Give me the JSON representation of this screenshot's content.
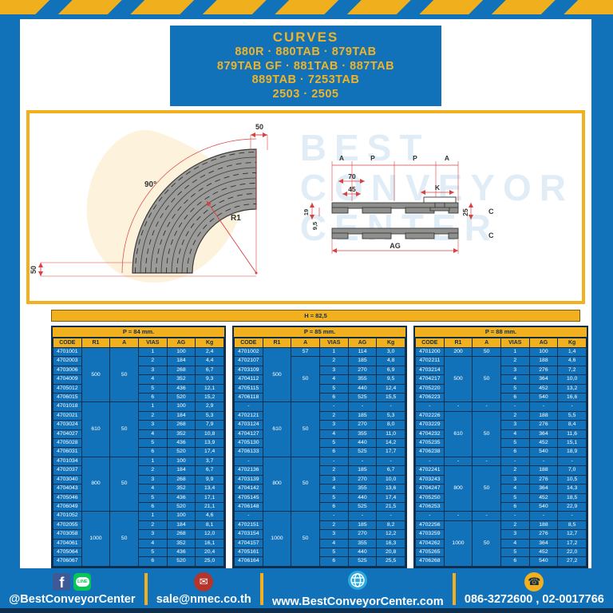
{
  "header": {
    "title": "CURVES",
    "lines": [
      "880R · 880TAB · 879TAB",
      "879TAB GF · 881TAB · 887TAB",
      "889TAB · 7253TAB",
      "2503 · 2505"
    ]
  },
  "watermark": {
    "line1": "BEST",
    "line2": "CONVEYOR",
    "line3": "CENTER"
  },
  "drawing": {
    "curve": {
      "angle": "90°",
      "radius": "R1",
      "top_width": "50",
      "bottom_width": "50"
    },
    "section": {
      "a_left": "A",
      "p_left": "P",
      "p_right": "P",
      "a_right": "A",
      "d70": "70",
      "d45": "45",
      "k": "K",
      "d25": "25",
      "c_top": "C",
      "c_bottom": "C",
      "ag": "AG",
      "d19": "19",
      "d95": "9,5"
    }
  },
  "hbar": {
    "label": "H = 82,5"
  },
  "tables": [
    {
      "title": "P = 84 mm.",
      "columns": [
        "CODE",
        "R1",
        "A",
        "VIAS",
        "AG",
        "Kg"
      ],
      "rows": [
        [
          "4701001",
          [
            "500",
            6
          ],
          [
            "50",
            6
          ],
          "1",
          "100",
          "2,4"
        ],
        [
          "4702003",
          "2",
          "184",
          "4,4"
        ],
        [
          "4703006",
          "3",
          "268",
          "6,7"
        ],
        [
          "4704009",
          "4",
          "352",
          "9,3"
        ],
        [
          "4705012",
          "5",
          "436",
          "12,1"
        ],
        [
          "4706015",
          "6",
          "520",
          "15,2"
        ],
        [
          "4701018",
          [
            "610",
            6
          ],
          [
            "50",
            6
          ],
          "1",
          "100",
          "2,9"
        ],
        [
          "4702021",
          "2",
          "184",
          "5,3"
        ],
        [
          "4703024",
          "3",
          "268",
          "7,9"
        ],
        [
          "4704027",
          "4",
          "352",
          "10,8"
        ],
        [
          "4705028",
          "5",
          "436",
          "13,9"
        ],
        [
          "4706031",
          "6",
          "520",
          "17,4"
        ],
        [
          "4701034",
          [
            "800",
            6
          ],
          [
            "50",
            6
          ],
          "1",
          "100",
          "3,7"
        ],
        [
          "4702037",
          "2",
          "184",
          "6,7"
        ],
        [
          "4703040",
          "3",
          "268",
          "9,9"
        ],
        [
          "4704043",
          "4",
          "352",
          "13,4"
        ],
        [
          "4705046",
          "5",
          "436",
          "17,1"
        ],
        [
          "4706049",
          "6",
          "520",
          "21,1"
        ],
        [
          "4701052",
          [
            "1000",
            6
          ],
          [
            "50",
            6
          ],
          "1",
          "100",
          "4,6"
        ],
        [
          "4702055",
          "2",
          "184",
          "8,1"
        ],
        [
          "4703058",
          "3",
          "268",
          "12,0"
        ],
        [
          "4704061",
          "4",
          "352",
          "16,1"
        ],
        [
          "4705064",
          "5",
          "436",
          "20,4"
        ],
        [
          "4706067",
          "6",
          "520",
          "25,0"
        ]
      ]
    },
    {
      "title": "P = 85 mm.",
      "columns": [
        "CODE",
        "R1",
        "A",
        "VIAS",
        "AG",
        "Kg"
      ],
      "rows": [
        [
          "4701002",
          [
            "500",
            6
          ],
          "57",
          "1",
          "114",
          "3,0"
        ],
        [
          "4702107",
          [
            "50",
            5
          ],
          "2",
          "185",
          "4,8"
        ],
        [
          "4703109",
          "3",
          "270",
          "6,9"
        ],
        [
          "4704112",
          "4",
          "355",
          "9,5"
        ],
        [
          "4705115",
          "5",
          "440",
          "12,4"
        ],
        [
          "4706118",
          "6",
          "525",
          "15,5"
        ],
        [
          "-",
          [
            "610",
            6
          ],
          [
            "50",
            6
          ],
          "-",
          "-",
          "-"
        ],
        [
          "4702121",
          "2",
          "185",
          "5,3"
        ],
        [
          "4703124",
          "3",
          "270",
          "8,0"
        ],
        [
          "4704127",
          "4",
          "355",
          "11,0"
        ],
        [
          "4705130",
          "5",
          "440",
          "14,2"
        ],
        [
          "4706133",
          "6",
          "525",
          "17,7"
        ],
        [
          "-",
          [
            "800",
            6
          ],
          [
            "50",
            6
          ],
          "-",
          "-",
          "-"
        ],
        [
          "4702136",
          "2",
          "185",
          "6,7"
        ],
        [
          "4703139",
          "3",
          "270",
          "10,0"
        ],
        [
          "4704142",
          "4",
          "355",
          "13,6"
        ],
        [
          "4705145",
          "5",
          "440",
          "17,4"
        ],
        [
          "4706148",
          "6",
          "525",
          "21,5"
        ],
        [
          "-",
          [
            "1000",
            6
          ],
          [
            "50",
            6
          ],
          "-",
          "-",
          "-"
        ],
        [
          "4702151",
          "2",
          "185",
          "8,2"
        ],
        [
          "4703154",
          "3",
          "270",
          "12,2"
        ],
        [
          "4704157",
          "4",
          "355",
          "16,3"
        ],
        [
          "4705161",
          "5",
          "440",
          "20,8"
        ],
        [
          "4706164",
          "6",
          "525",
          "25,5"
        ]
      ]
    },
    {
      "title": "P = 88 mm.",
      "columns": [
        "CODE",
        "R1",
        "A",
        "VIAS",
        "AG",
        "Kg"
      ],
      "rows": [
        [
          "4701200",
          "200",
          "50",
          "1",
          "100",
          "1,4"
        ],
        [
          "4702211",
          [
            "500",
            5
          ],
          [
            "50",
            5
          ],
          "2",
          "188",
          "4,6"
        ],
        [
          "4703214",
          "3",
          "276",
          "7,2"
        ],
        [
          "4704217",
          "4",
          "364",
          "10,0"
        ],
        [
          "4705220",
          "5",
          "452",
          "13,2"
        ],
        [
          "4706223",
          "6",
          "540",
          "16,6"
        ],
        [
          "-",
          "-",
          "-",
          "-",
          "-",
          "-"
        ],
        [
          "4702226",
          [
            "610",
            5
          ],
          [
            "50",
            5
          ],
          "2",
          "188",
          "5,5"
        ],
        [
          "4703229",
          "3",
          "276",
          "8,4"
        ],
        [
          "4704232",
          "4",
          "364",
          "11,6"
        ],
        [
          "4705235",
          "5",
          "452",
          "15,1"
        ],
        [
          "4706238",
          "6",
          "540",
          "18,9"
        ],
        [
          "-",
          "-",
          "-",
          "-",
          "-",
          "-"
        ],
        [
          "4702241",
          [
            "800",
            5
          ],
          [
            "50",
            5
          ],
          "2",
          "188",
          "7,0"
        ],
        [
          "4703243",
          "3",
          "276",
          "10,5"
        ],
        [
          "4704247",
          "4",
          "364",
          "14,3"
        ],
        [
          "4705250",
          "5",
          "452",
          "18,5"
        ],
        [
          "4706253",
          "6",
          "540",
          "22,9"
        ],
        [
          "-",
          "-",
          "-",
          "-",
          "-",
          "-"
        ],
        [
          "4702256",
          [
            "1000",
            5
          ],
          [
            "50",
            5
          ],
          "2",
          "188",
          "8,5"
        ],
        [
          "4703259",
          "3",
          "276",
          "12,7"
        ],
        [
          "4704262",
          "4",
          "364",
          "17,2"
        ],
        [
          "4705265",
          "5",
          "452",
          "22,0"
        ],
        [
          "4706268",
          "6",
          "540",
          "27,2"
        ]
      ]
    }
  ],
  "footer": {
    "social_label": "@BestConveyorCenter",
    "line_text": "LINE",
    "email": "sale@nmec.co.th",
    "website": "www.BestConveyorCenter.com",
    "phones": "086-3272600 , 02-0017766"
  },
  "colors": {
    "blue": "#1272B9",
    "yellow": "#F2B01E",
    "navy": "#0E2F4E",
    "red_dim": "#D94040",
    "belt_gray": "#9B9B99",
    "facebook_blue": "#3D5A96",
    "line_green": "#06C755",
    "mail_red": "#B5342C",
    "globe_blue": "#2BA9E0"
  }
}
